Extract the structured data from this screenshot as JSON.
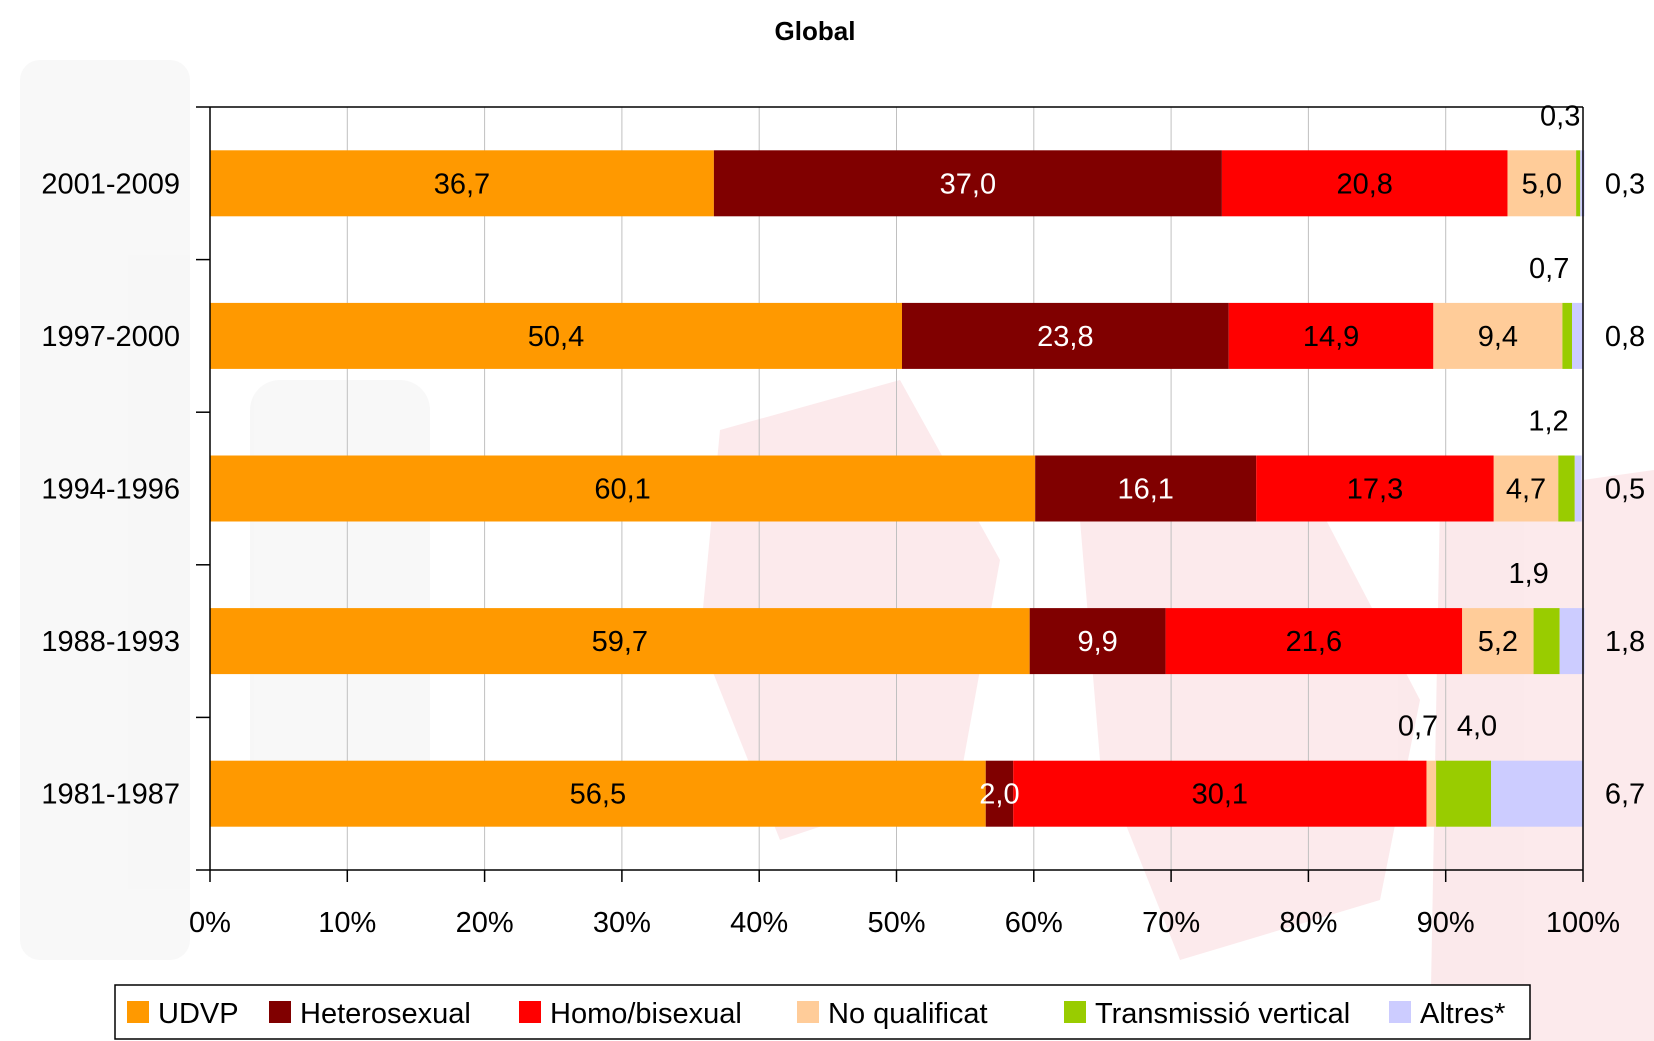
{
  "chart_data": {
    "type": "bar",
    "orientation": "horizontal",
    "stacked": "percent",
    "title": "Global",
    "categories": [
      "2001-2009",
      "1997-2000",
      "1994-1996",
      "1988-1993",
      "1981-1987"
    ],
    "series": [
      {
        "name": "UDVP",
        "color": "#FF9900",
        "values": [
          36.7,
          50.4,
          60.1,
          59.7,
          56.5
        ],
        "labels": [
          "36,7",
          "50,4",
          "60,1",
          "59,7",
          "56,5"
        ]
      },
      {
        "name": "Heterosexual",
        "color": "#800000",
        "values": [
          37.0,
          23.8,
          16.1,
          9.9,
          2.0
        ],
        "labels": [
          "37,0",
          "23,8",
          "16,1",
          "9,9",
          "2,0"
        ]
      },
      {
        "name": "Homo/bisexual",
        "color": "#FF0000",
        "values": [
          20.8,
          14.9,
          17.3,
          21.6,
          30.1
        ],
        "labels": [
          "20,8",
          "14,9",
          "17,3",
          "21,6",
          "30,1"
        ]
      },
      {
        "name": "No qualificat",
        "color": "#FFCC99",
        "values": [
          5.0,
          9.4,
          4.7,
          5.2,
          0.7
        ],
        "labels": [
          "5,0",
          "9,4",
          "4,7",
          "5,2",
          "0,7"
        ]
      },
      {
        "name": "Transmissió vertical",
        "color": "#99CC00",
        "values": [
          0.3,
          0.7,
          1.2,
          1.9,
          4.0
        ],
        "labels": [
          "0,3",
          "0,7",
          "1,2",
          "1,9",
          "4,0"
        ]
      },
      {
        "name": "Altres*",
        "color": "#CCCCFF",
        "values": [
          0.3,
          0.8,
          0.5,
          1.8,
          6.7
        ],
        "labels": [
          "0,3",
          "0,8",
          "0,5",
          "1,8",
          "6,7"
        ]
      }
    ],
    "x_ticks": [
      "0%",
      "10%",
      "20%",
      "30%",
      "40%",
      "50%",
      "60%",
      "70%",
      "80%",
      "90%",
      "100%"
    ],
    "xlim": [
      0,
      100
    ],
    "grid": true,
    "legend_position": "bottom"
  }
}
